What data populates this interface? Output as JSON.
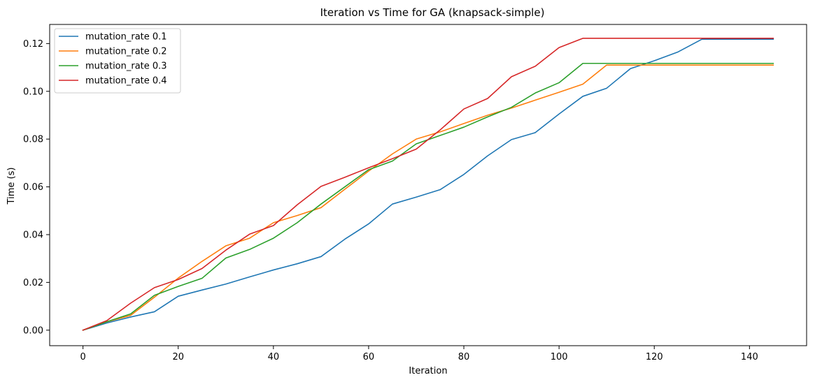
{
  "chart_data": {
    "type": "line",
    "title": "Iteration vs Time for GA (knapsack-simple)",
    "xlabel": "Iteration",
    "ylabel": "Time (s)",
    "xlim": [
      -7,
      152
    ],
    "ylim": [
      -0.0065,
      0.128
    ],
    "xticks": [
      0,
      20,
      40,
      60,
      80,
      100,
      120,
      140
    ],
    "yticks": [
      0.0,
      0.02,
      0.04,
      0.06,
      0.08,
      0.1,
      0.12
    ],
    "xtick_labels": [
      "0",
      "20",
      "40",
      "60",
      "80",
      "100",
      "120",
      "140"
    ],
    "ytick_labels": [
      "0.00",
      "0.02",
      "0.04",
      "0.06",
      "0.08",
      "0.10",
      "0.12"
    ],
    "grid": false,
    "legend_position": "top-left",
    "x": [
      0,
      5,
      10,
      15,
      20,
      25,
      30,
      35,
      40,
      45,
      50,
      55,
      60,
      65,
      70,
      75,
      80,
      85,
      90,
      95,
      100,
      105,
      110,
      115,
      120,
      125,
      130,
      135,
      140,
      145
    ],
    "series": [
      {
        "name": "mutation_rate 0.1",
        "color": "#1f77b4",
        "values": [
          0.0,
          0.003,
          0.0055,
          0.0077,
          0.0142,
          0.0168,
          0.0193,
          0.0223,
          0.0252,
          0.0278,
          0.0308,
          0.0381,
          0.0445,
          0.0528,
          0.0557,
          0.0588,
          0.0652,
          0.073,
          0.0798,
          0.0827,
          0.0905,
          0.0979,
          0.1013,
          0.1095,
          0.1128,
          0.1165,
          0.1218,
          0.1218,
          0.1218,
          0.1218
        ]
      },
      {
        "name": "mutation_rate 0.2",
        "color": "#ff7f0e",
        "values": [
          0.0,
          0.0035,
          0.0062,
          0.0138,
          0.0218,
          0.0288,
          0.0353,
          0.0385,
          0.045,
          0.048,
          0.0513,
          0.059,
          0.0666,
          0.0738,
          0.08,
          0.083,
          0.0865,
          0.09,
          0.093,
          0.0963,
          0.0996,
          0.103,
          0.111,
          0.111,
          0.111,
          0.111,
          0.111,
          0.111,
          0.111,
          0.111
        ]
      },
      {
        "name": "mutation_rate 0.3",
        "color": "#2ca02c",
        "values": [
          0.0,
          0.0035,
          0.0068,
          0.0146,
          0.0183,
          0.0217,
          0.0302,
          0.0338,
          0.0385,
          0.045,
          0.0528,
          0.06,
          0.0672,
          0.0708,
          0.078,
          0.0815,
          0.085,
          0.0893,
          0.0933,
          0.0993,
          0.1036,
          0.1117,
          0.1117,
          0.1117,
          0.1117,
          0.1117,
          0.1117,
          0.1117,
          0.1117,
          0.1117
        ]
      },
      {
        "name": "mutation_rate 0.4",
        "color": "#d62728",
        "values": [
          0.0,
          0.004,
          0.0113,
          0.0178,
          0.0212,
          0.0258,
          0.0335,
          0.0402,
          0.0438,
          0.0525,
          0.0602,
          0.064,
          0.068,
          0.0718,
          0.0758,
          0.0838,
          0.0926,
          0.097,
          0.1061,
          0.1105,
          0.1183,
          0.1222,
          0.1222,
          0.1222,
          0.1222,
          0.1222,
          0.1222,
          0.1222,
          0.1222,
          0.1222
        ]
      }
    ]
  }
}
